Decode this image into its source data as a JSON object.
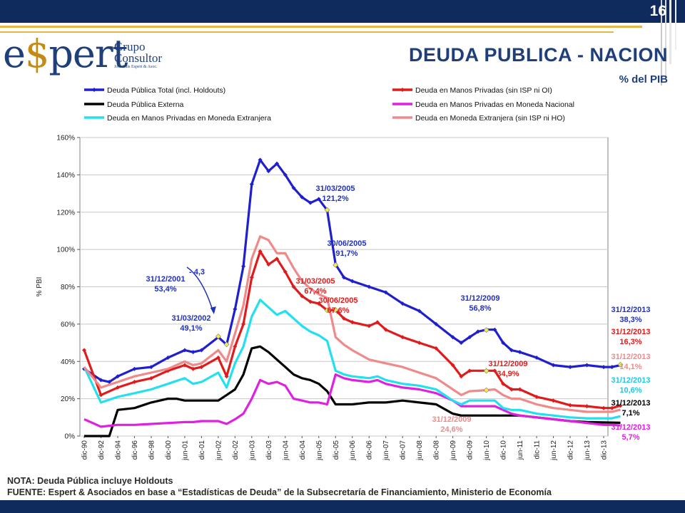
{
  "page_number": "16",
  "logo": {
    "word_pre": "e",
    "word_dollar": "$",
    "word_post": "pert",
    "line1": "Grupo",
    "line2": "Consultor",
    "line3": "José Luis Espert & Asoc."
  },
  "title": "DEUDA PUBLICA - NACION",
  "subtitle": "% del PIB",
  "footer": {
    "note": "NOTA: Deuda Pública incluye Holdouts",
    "source": "FUENTE: Espert & Asociados en base a “Estadísticas de Deuda” de la Subsecretaría de Financiamiento, Ministerio de Economía"
  },
  "colors": {
    "brand_navy": "#0f2a5c",
    "brand_gold": "#e3b74a",
    "total": "#1f1fd0",
    "privadas": "#e01b1b",
    "externa": "#000000",
    "mn": "#e020e0",
    "me": "#22e0f0",
    "meho": "#f08a8a"
  },
  "chart_data": {
    "type": "line",
    "ylabel": "% PBI",
    "xlabel": "",
    "ylim": [
      0,
      160
    ],
    "yticks": [
      "0%",
      "20%",
      "40%",
      "60%",
      "80%",
      "100%",
      "120%",
      "140%",
      "160%"
    ],
    "grid": true,
    "legend_position": "top",
    "categories": [
      "dic-90",
      "dic-92",
      "dic-94",
      "dic-96",
      "dic-98",
      "dic-00",
      "jun-01",
      "dic-01",
      "jun-02",
      "dic-02",
      "jun-03",
      "dic-03",
      "jun-04",
      "dic-04",
      "jun-05",
      "dic-05",
      "jun-06",
      "dic-06",
      "jun-07",
      "dic-07",
      "jun-08",
      "dic-08",
      "jun-09",
      "dic-09",
      "jun-10",
      "dic-10",
      "jun-11",
      "dic-11",
      "jun-12",
      "dic-12",
      "jun-13",
      "dic-13"
    ],
    "series": [
      {
        "name": "Deuda Pública Total (incl. Holdouts)",
        "color": "#1f1fd0",
        "points": [
          [
            0,
            36
          ],
          [
            1,
            30
          ],
          [
            1.5,
            29
          ],
          [
            2,
            32
          ],
          [
            3,
            36
          ],
          [
            4,
            37
          ],
          [
            5,
            42
          ],
          [
            6,
            46
          ],
          [
            6.5,
            45
          ],
          [
            7,
            46
          ],
          [
            8,
            53
          ],
          [
            8.5,
            49
          ],
          [
            9,
            68
          ],
          [
            9.5,
            91
          ],
          [
            10,
            135
          ],
          [
            10.5,
            148
          ],
          [
            11,
            142
          ],
          [
            11.5,
            146
          ],
          [
            12,
            140
          ],
          [
            12.5,
            133
          ],
          [
            13,
            128
          ],
          [
            13.5,
            125
          ],
          [
            14,
            127
          ],
          [
            14.5,
            121
          ],
          [
            15,
            92
          ],
          [
            15.5,
            85
          ],
          [
            16,
            83
          ],
          [
            17,
            80
          ],
          [
            18,
            77
          ],
          [
            19,
            71
          ],
          [
            20,
            67
          ],
          [
            21,
            60
          ],
          [
            22,
            53
          ],
          [
            22.5,
            50
          ],
          [
            23,
            53
          ],
          [
            23.5,
            56
          ],
          [
            24,
            57
          ],
          [
            24.5,
            57
          ],
          [
            25,
            50
          ],
          [
            25.5,
            46
          ],
          [
            26,
            45
          ],
          [
            27,
            42
          ],
          [
            28,
            38
          ],
          [
            29,
            37
          ],
          [
            30,
            38
          ],
          [
            31,
            37
          ],
          [
            31.5,
            37
          ],
          [
            32,
            38
          ]
        ]
      },
      {
        "name": "Deuda en Manos Privadas (sin ISP ni OI)",
        "color": "#e01b1b",
        "points": [
          [
            0,
            46
          ],
          [
            1,
            22
          ],
          [
            2,
            26
          ],
          [
            3,
            29
          ],
          [
            4,
            31
          ],
          [
            5,
            35
          ],
          [
            6,
            38
          ],
          [
            6.5,
            36
          ],
          [
            7,
            37
          ],
          [
            8,
            42
          ],
          [
            8.5,
            32
          ],
          [
            9,
            48
          ],
          [
            9.5,
            60
          ],
          [
            10,
            85
          ],
          [
            10.5,
            99
          ],
          [
            11,
            92
          ],
          [
            11.5,
            95
          ],
          [
            12,
            88
          ],
          [
            12.5,
            80
          ],
          [
            13,
            75
          ],
          [
            13.5,
            72
          ],
          [
            14,
            71
          ],
          [
            14.5,
            67.4
          ],
          [
            15,
            67.6
          ],
          [
            15.5,
            63
          ],
          [
            16,
            61
          ],
          [
            17,
            59
          ],
          [
            17.5,
            61
          ],
          [
            18,
            57
          ],
          [
            19,
            53
          ],
          [
            20,
            50
          ],
          [
            21,
            47
          ],
          [
            22,
            38
          ],
          [
            22.5,
            32
          ],
          [
            23,
            35
          ],
          [
            24,
            35
          ],
          [
            24.5,
            35
          ],
          [
            25,
            28
          ],
          [
            25.5,
            25
          ],
          [
            26,
            25
          ],
          [
            27,
            21
          ],
          [
            28,
            19
          ],
          [
            29,
            16.5
          ],
          [
            30,
            16
          ],
          [
            31,
            15
          ],
          [
            31.5,
            15
          ],
          [
            32,
            16.3
          ]
        ]
      },
      {
        "name": "Deuda Pública Externa",
        "color": "#000000",
        "points": [
          [
            0,
            0
          ],
          [
            1,
            0
          ],
          [
            1.5,
            0
          ],
          [
            2,
            14
          ],
          [
            3,
            15
          ],
          [
            4,
            18
          ],
          [
            5,
            20
          ],
          [
            5.5,
            20
          ],
          [
            6,
            19
          ],
          [
            7,
            19
          ],
          [
            8,
            19
          ],
          [
            8.5,
            22
          ],
          [
            9,
            25
          ],
          [
            9.5,
            33
          ],
          [
            10,
            47
          ],
          [
            10.5,
            48
          ],
          [
            11,
            45
          ],
          [
            12,
            37
          ],
          [
            12.5,
            33
          ],
          [
            13,
            31
          ],
          [
            13.5,
            30
          ],
          [
            14,
            28
          ],
          [
            14.5,
            24
          ],
          [
            15,
            17
          ],
          [
            16,
            17
          ],
          [
            17,
            18
          ],
          [
            18,
            18
          ],
          [
            19,
            19
          ],
          [
            20,
            18
          ],
          [
            21,
            17
          ],
          [
            22,
            12
          ],
          [
            22.5,
            11
          ],
          [
            23,
            11
          ],
          [
            24,
            11
          ],
          [
            24.5,
            11
          ],
          [
            25,
            11
          ],
          [
            26,
            11
          ],
          [
            27,
            10
          ],
          [
            28,
            9
          ],
          [
            29,
            8
          ],
          [
            30,
            7.5
          ],
          [
            31,
            7.3
          ],
          [
            32,
            7.1
          ]
        ]
      },
      {
        "name": "Deuda en Manos Privadas en Moneda Nacional",
        "color": "#e020e0",
        "points": [
          [
            0,
            9
          ],
          [
            1,
            5
          ],
          [
            2,
            6
          ],
          [
            3,
            6
          ],
          [
            4,
            6.5
          ],
          [
            5,
            7
          ],
          [
            6,
            7.5
          ],
          [
            6.5,
            7.5
          ],
          [
            7,
            8
          ],
          [
            8,
            8
          ],
          [
            8.5,
            6.5
          ],
          [
            9,
            9
          ],
          [
            9.5,
            12
          ],
          [
            10,
            20
          ],
          [
            10.5,
            30
          ],
          [
            11,
            28
          ],
          [
            11.5,
            29
          ],
          [
            12,
            27
          ],
          [
            12.5,
            20
          ],
          [
            13,
            19
          ],
          [
            13.5,
            18
          ],
          [
            14,
            18
          ],
          [
            14.5,
            17
          ],
          [
            15,
            33
          ],
          [
            15.5,
            31
          ],
          [
            16,
            30
          ],
          [
            17,
            29
          ],
          [
            17.5,
            30
          ],
          [
            18,
            28
          ],
          [
            19,
            26
          ],
          [
            20,
            25
          ],
          [
            21,
            23
          ],
          [
            22,
            19
          ],
          [
            22.5,
            16
          ],
          [
            23,
            16
          ],
          [
            24,
            16
          ],
          [
            24.5,
            16
          ],
          [
            25,
            14
          ],
          [
            25.5,
            12
          ],
          [
            26,
            11
          ],
          [
            27,
            10
          ],
          [
            28,
            9
          ],
          [
            29,
            8
          ],
          [
            30,
            7
          ],
          [
            31,
            6
          ],
          [
            31.5,
            6
          ],
          [
            32,
            5.7
          ]
        ]
      },
      {
        "name": "Deuda en Manos Privadas en Moneda Extranjera",
        "color": "#22e0f0",
        "points": [
          [
            0,
            37
          ],
          [
            1,
            18
          ],
          [
            2,
            21
          ],
          [
            3,
            23
          ],
          [
            4,
            25
          ],
          [
            5,
            28
          ],
          [
            6,
            31
          ],
          [
            6.5,
            28
          ],
          [
            7,
            29
          ],
          [
            8,
            34
          ],
          [
            8.5,
            26
          ],
          [
            9,
            39
          ],
          [
            9.5,
            48
          ],
          [
            10,
            64
          ],
          [
            10.5,
            73
          ],
          [
            11,
            69
          ],
          [
            11.5,
            65
          ],
          [
            12,
            67
          ],
          [
            12.5,
            63
          ],
          [
            13,
            59
          ],
          [
            13.5,
            56
          ],
          [
            14,
            54
          ],
          [
            14.5,
            51
          ],
          [
            15,
            35
          ],
          [
            15.5,
            33
          ],
          [
            16,
            32
          ],
          [
            17,
            31
          ],
          [
            17.5,
            32
          ],
          [
            18,
            30
          ],
          [
            19,
            28
          ],
          [
            20,
            27
          ],
          [
            21,
            25
          ],
          [
            22,
            19
          ],
          [
            22.5,
            17
          ],
          [
            23,
            19
          ],
          [
            24,
            19
          ],
          [
            24.5,
            19
          ],
          [
            25,
            15
          ],
          [
            25.5,
            14
          ],
          [
            26,
            14
          ],
          [
            27,
            12
          ],
          [
            28,
            11
          ],
          [
            29,
            10
          ],
          [
            30,
            9.5
          ],
          [
            31,
            9.5
          ],
          [
            31.5,
            9.5
          ],
          [
            32,
            10.6
          ]
        ]
      },
      {
        "name": "Deuda en Moneda Extranjera (sin ISP ni HO)",
        "color": "#f08a8a",
        "points": [
          [
            0,
            37
          ],
          [
            1,
            26
          ],
          [
            2,
            29
          ],
          [
            3,
            32
          ],
          [
            4,
            34
          ],
          [
            5,
            36
          ],
          [
            6,
            40
          ],
          [
            6.5,
            38
          ],
          [
            7,
            39
          ],
          [
            8,
            46
          ],
          [
            8.5,
            40
          ],
          [
            9,
            55
          ],
          [
            9.5,
            70
          ],
          [
            10,
            95
          ],
          [
            10.5,
            107
          ],
          [
            11,
            105
          ],
          [
            11.5,
            98
          ],
          [
            12,
            98
          ],
          [
            12.5,
            90
          ],
          [
            13,
            83
          ],
          [
            13.5,
            79
          ],
          [
            14,
            76
          ],
          [
            14.5,
            74
          ],
          [
            15,
            53
          ],
          [
            15.5,
            49
          ],
          [
            16,
            46
          ],
          [
            17,
            41
          ],
          [
            17.5,
            40
          ],
          [
            18,
            39
          ],
          [
            19,
            37
          ],
          [
            20,
            34
          ],
          [
            21,
            31
          ],
          [
            22,
            25
          ],
          [
            22.5,
            22
          ],
          [
            23,
            24
          ],
          [
            24,
            24.6
          ],
          [
            24.5,
            25
          ],
          [
            25,
            22
          ],
          [
            25.5,
            20
          ],
          [
            26,
            20
          ],
          [
            27,
            17
          ],
          [
            28,
            15
          ],
          [
            29,
            14
          ],
          [
            30,
            13
          ],
          [
            31,
            13
          ],
          [
            31.5,
            13
          ],
          [
            32,
            14.1
          ]
        ]
      }
    ],
    "annotations": [
      {
        "lines": [
          "31/03/2005",
          "121,2%"
        ],
        "color": "#2030c0"
      },
      {
        "lines": [
          "30/06/2005",
          "91,7%"
        ],
        "color": "#2030c0"
      },
      {
        "lines": [
          "31/12/2001",
          "53,4%"
        ],
        "color": "#2030c0"
      },
      {
        "lines": [
          "- 4,3"
        ],
        "color": "#2030c0"
      },
      {
        "lines": [
          "31/03/2002",
          "49,1%"
        ],
        "color": "#2030c0"
      },
      {
        "lines": [
          "31/03/2005",
          "67,4%"
        ],
        "color": "#e01b1b"
      },
      {
        "lines": [
          "30/06/2005",
          "67,6%"
        ],
        "color": "#e01b1b"
      },
      {
        "lines": [
          "31/12/2009",
          "56,8%"
        ],
        "color": "#2030c0"
      },
      {
        "lines": [
          "31/12/2009",
          "34,9%"
        ],
        "color": "#e01b1b"
      },
      {
        "lines": [
          "31/12/2009",
          "24,6%"
        ],
        "color": "#f08a8a"
      },
      {
        "lines": [
          "31/12/2013",
          "38,3%"
        ],
        "color": "#2030c0"
      },
      {
        "lines": [
          "31/12/2013",
          "16,3%"
        ],
        "color": "#e01b1b"
      },
      {
        "lines": [
          "31/12/2013",
          "14,1%"
        ],
        "color": "#f08a8a"
      },
      {
        "lines": [
          "31/12/2013",
          "10,6%"
        ],
        "color": "#22c8e0"
      },
      {
        "lines": [
          "31/12/2013",
          "7,1%"
        ],
        "color": "#000000"
      },
      {
        "lines": [
          "31/12/2013",
          "5,7%"
        ],
        "color": "#e020e0"
      }
    ]
  }
}
